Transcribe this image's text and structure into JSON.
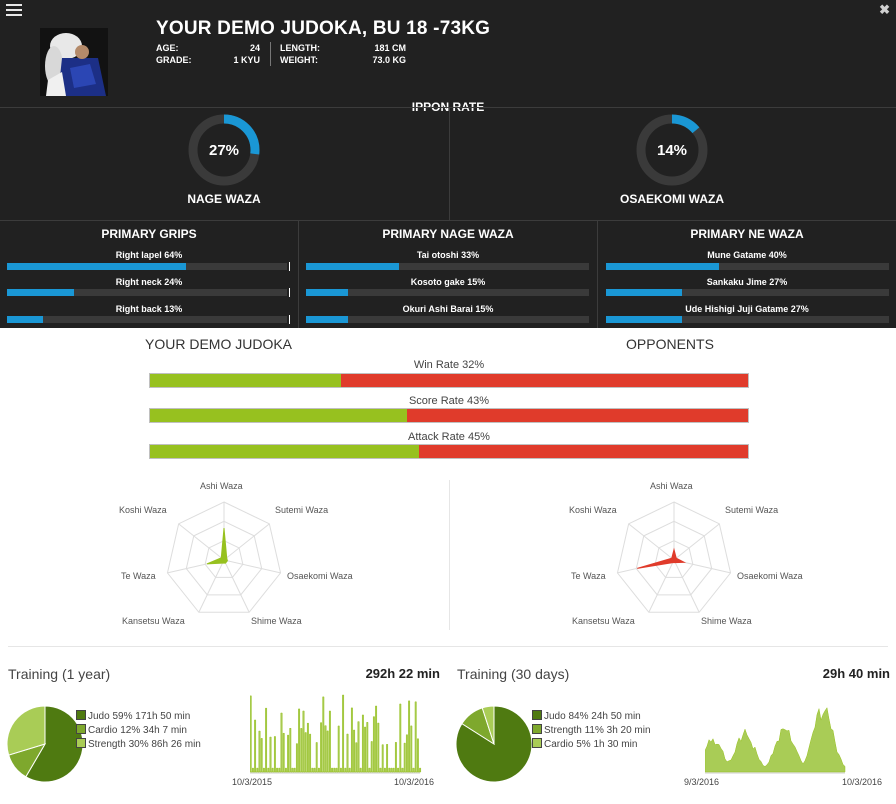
{
  "header": {
    "name": "YOUR DEMO JUDOKA, BU 18 -73KG",
    "age_label": "AGE:",
    "age_value": "24",
    "grade_label": "GRADE:",
    "grade_value": "1 KYU",
    "length_label": "LENGTH:",
    "length_value": "181 CM",
    "weight_label": "WEIGHT:",
    "weight_value": "73.0 KG"
  },
  "ippon": {
    "title": "IPPON RATE",
    "nage": {
      "pct_label": "27%",
      "value": 27,
      "label": "NAGE WAZA"
    },
    "osaekomi": {
      "pct_label": "14%",
      "value": 14,
      "label": "OSAEKOMI WAZA"
    }
  },
  "primary": {
    "grips": {
      "title": "PRIMARY GRIPS",
      "items": [
        {
          "label": "Right lapel 64%",
          "value": 64
        },
        {
          "label": "Right neck 24%",
          "value": 24
        },
        {
          "label": "Right back 13%",
          "value": 13
        }
      ]
    },
    "nage": {
      "title": "PRIMARY NAGE WAZA",
      "items": [
        {
          "label": "Tai otoshi 33%",
          "value": 33
        },
        {
          "label": "Kosoto gake 15%",
          "value": 15
        },
        {
          "label": "Okuri Ashi Barai 15%",
          "value": 15
        }
      ]
    },
    "ne": {
      "title": "PRIMARY NE WAZA",
      "items": [
        {
          "label": "Mune Gatame 40%",
          "value": 40
        },
        {
          "label": "Sankaku Jime 27%",
          "value": 27
        },
        {
          "label": "Ude Hishigi Juji Gatame 27%",
          "value": 27
        }
      ]
    }
  },
  "comparison": {
    "left_title": "YOUR DEMO JUDOKA",
    "right_title": "OPPONENTS",
    "bars": [
      {
        "label": "Win Rate 32%",
        "value": 32
      },
      {
        "label": "Score Rate 43%",
        "value": 43
      },
      {
        "label": "Attack Rate 45%",
        "value": 45
      }
    ]
  },
  "radar": {
    "axes": [
      "Ashi Waza",
      "Sutemi Waza",
      "Osaekomi Waza",
      "Shime Waza",
      "Kansetsu Waza",
      "Te Waza",
      "Koshi Waza"
    ],
    "judoka_values": [
      0.55,
      0.06,
      0.06,
      0.06,
      0.06,
      0.3,
      0.06
    ],
    "opponent_values": [
      0.18,
      0.05,
      0.18,
      0.05,
      0.05,
      0.65,
      0.05
    ]
  },
  "training_year": {
    "title": "Training (1 year)",
    "total": "292h 22 min",
    "legend": [
      {
        "label": "Judo 59% 171h 50 min",
        "color": "#4f7a11",
        "value": 59
      },
      {
        "label": "Cardio 12% 34h 7 min",
        "color": "#7ea82d",
        "value": 12
      },
      {
        "label": "Strength 30% 86h 26 min",
        "color": "#a9cc56",
        "value": 30
      }
    ],
    "date_start": "10/3/2015",
    "date_end": "10/3/2016"
  },
  "training_month": {
    "title": "Training (30 days)",
    "total": "29h 40 min",
    "legend": [
      {
        "label": "Judo 84% 24h 50 min",
        "color": "#4f7a11",
        "value": 84
      },
      {
        "label": "Strength 11% 3h 20 min",
        "color": "#7ea82d",
        "value": 11
      },
      {
        "label": "Cardio 5% 1h 30 min",
        "color": "#a9cc56",
        "value": 5
      }
    ],
    "date_start": "9/3/2016",
    "date_end": "10/3/2016"
  },
  "colors": {
    "blue": "#1a97d5",
    "green": "#97c11f",
    "red": "#e03b2b",
    "dark": "#212121"
  }
}
